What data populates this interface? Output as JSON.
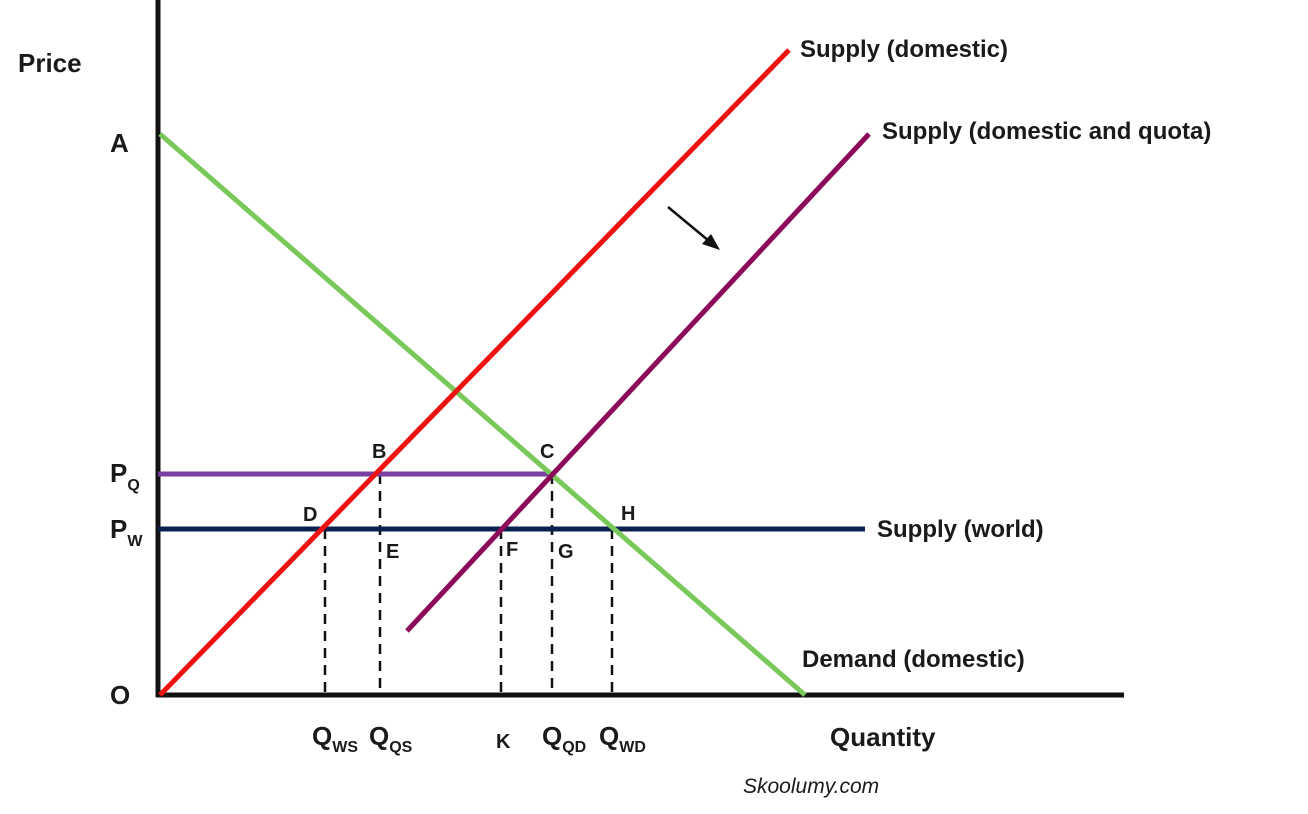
{
  "axes": {
    "y_label": "Price",
    "x_label": "Quantity",
    "origin_label": "O",
    "y_intercept_label": "A"
  },
  "curves": {
    "supply_domestic": {
      "label": "Supply (domestic)",
      "color": "#ee1111"
    },
    "supply_domestic_quota": {
      "label": "Supply (domestic and quota)",
      "color": "#8b0a5a"
    },
    "supply_world": {
      "label": "Supply (world)",
      "color": "#0a2150"
    },
    "demand_domestic": {
      "label": "Demand (domestic)",
      "color": "#79c85a"
    },
    "quota_price_line": {
      "color": "#7a3fa0"
    }
  },
  "price_labels": {
    "quota": {
      "main": "P",
      "sub": "Q"
    },
    "world": {
      "main": "P",
      "sub": "W"
    }
  },
  "quantity_labels": {
    "q_ws": {
      "main": "Q",
      "sub": "WS"
    },
    "q_qs": {
      "main": "Q",
      "sub": "QS"
    },
    "k": "K",
    "q_qd": {
      "main": "Q",
      "sub": "QD"
    },
    "q_wd": {
      "main": "Q",
      "sub": "WD"
    }
  },
  "points": {
    "b": "B",
    "c": "C",
    "d": "D",
    "e": "E",
    "f": "F",
    "g": "G",
    "h": "H"
  },
  "shift_arrow": "arrow-icon",
  "credit": "Skoolumy.com"
}
